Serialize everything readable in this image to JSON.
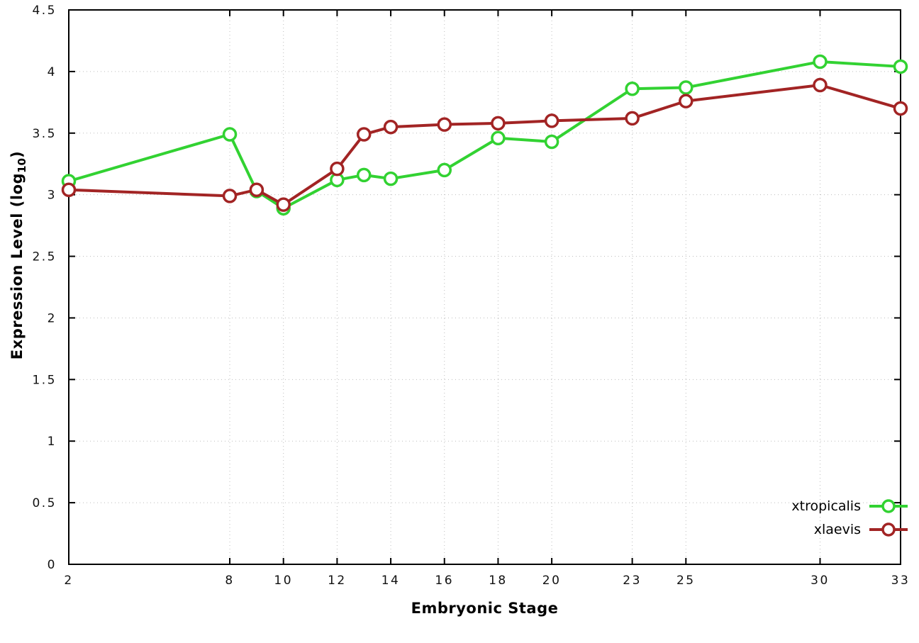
{
  "chart_data": {
    "type": "line",
    "title": "",
    "xlabel": "Embryonic Stage",
    "ylabel": "Expression Level (log10)",
    "ylabel_parts": {
      "prefix": "Expression Level (log",
      "sub": "10",
      "suffix": ")"
    },
    "xlim": [
      2,
      33
    ],
    "ylim": [
      0,
      4.5
    ],
    "x_ticks": [
      2,
      8,
      10,
      12,
      14,
      16,
      18,
      20,
      23,
      25,
      30,
      33
    ],
    "x_tick_labels": [
      "2",
      "8",
      "10",
      "12",
      "14",
      "16",
      "18",
      "20",
      "23",
      "25",
      "30",
      "33"
    ],
    "y_ticks": [
      0,
      0.5,
      1,
      1.5,
      2,
      2.5,
      3,
      3.5,
      4,
      4.5
    ],
    "y_tick_labels": [
      "0",
      "0.5",
      "1",
      "1.5",
      "2",
      "2.5",
      "3",
      "3.5",
      "4",
      "4.5"
    ],
    "grid": true,
    "grid_style": "dotted",
    "legend_position": "bottom-right-inside",
    "background_color": "#ffffff",
    "x": [
      2,
      8,
      9,
      10,
      12,
      13,
      14,
      16,
      18,
      20,
      23,
      25,
      30,
      33
    ],
    "series": [
      {
        "name": "xtropicalis",
        "color": "#32d232",
        "marker": "open-circle",
        "values": [
          3.11,
          3.49,
          3.03,
          2.89,
          3.12,
          3.16,
          3.13,
          3.2,
          3.46,
          3.43,
          3.86,
          3.87,
          4.08,
          4.04
        ]
      },
      {
        "name": "xlaevis",
        "color": "#a22424",
        "marker": "open-circle",
        "values": [
          3.04,
          2.99,
          3.04,
          2.92,
          3.21,
          3.49,
          3.55,
          3.57,
          3.58,
          3.6,
          3.62,
          3.76,
          3.89,
          3.7
        ]
      }
    ]
  }
}
